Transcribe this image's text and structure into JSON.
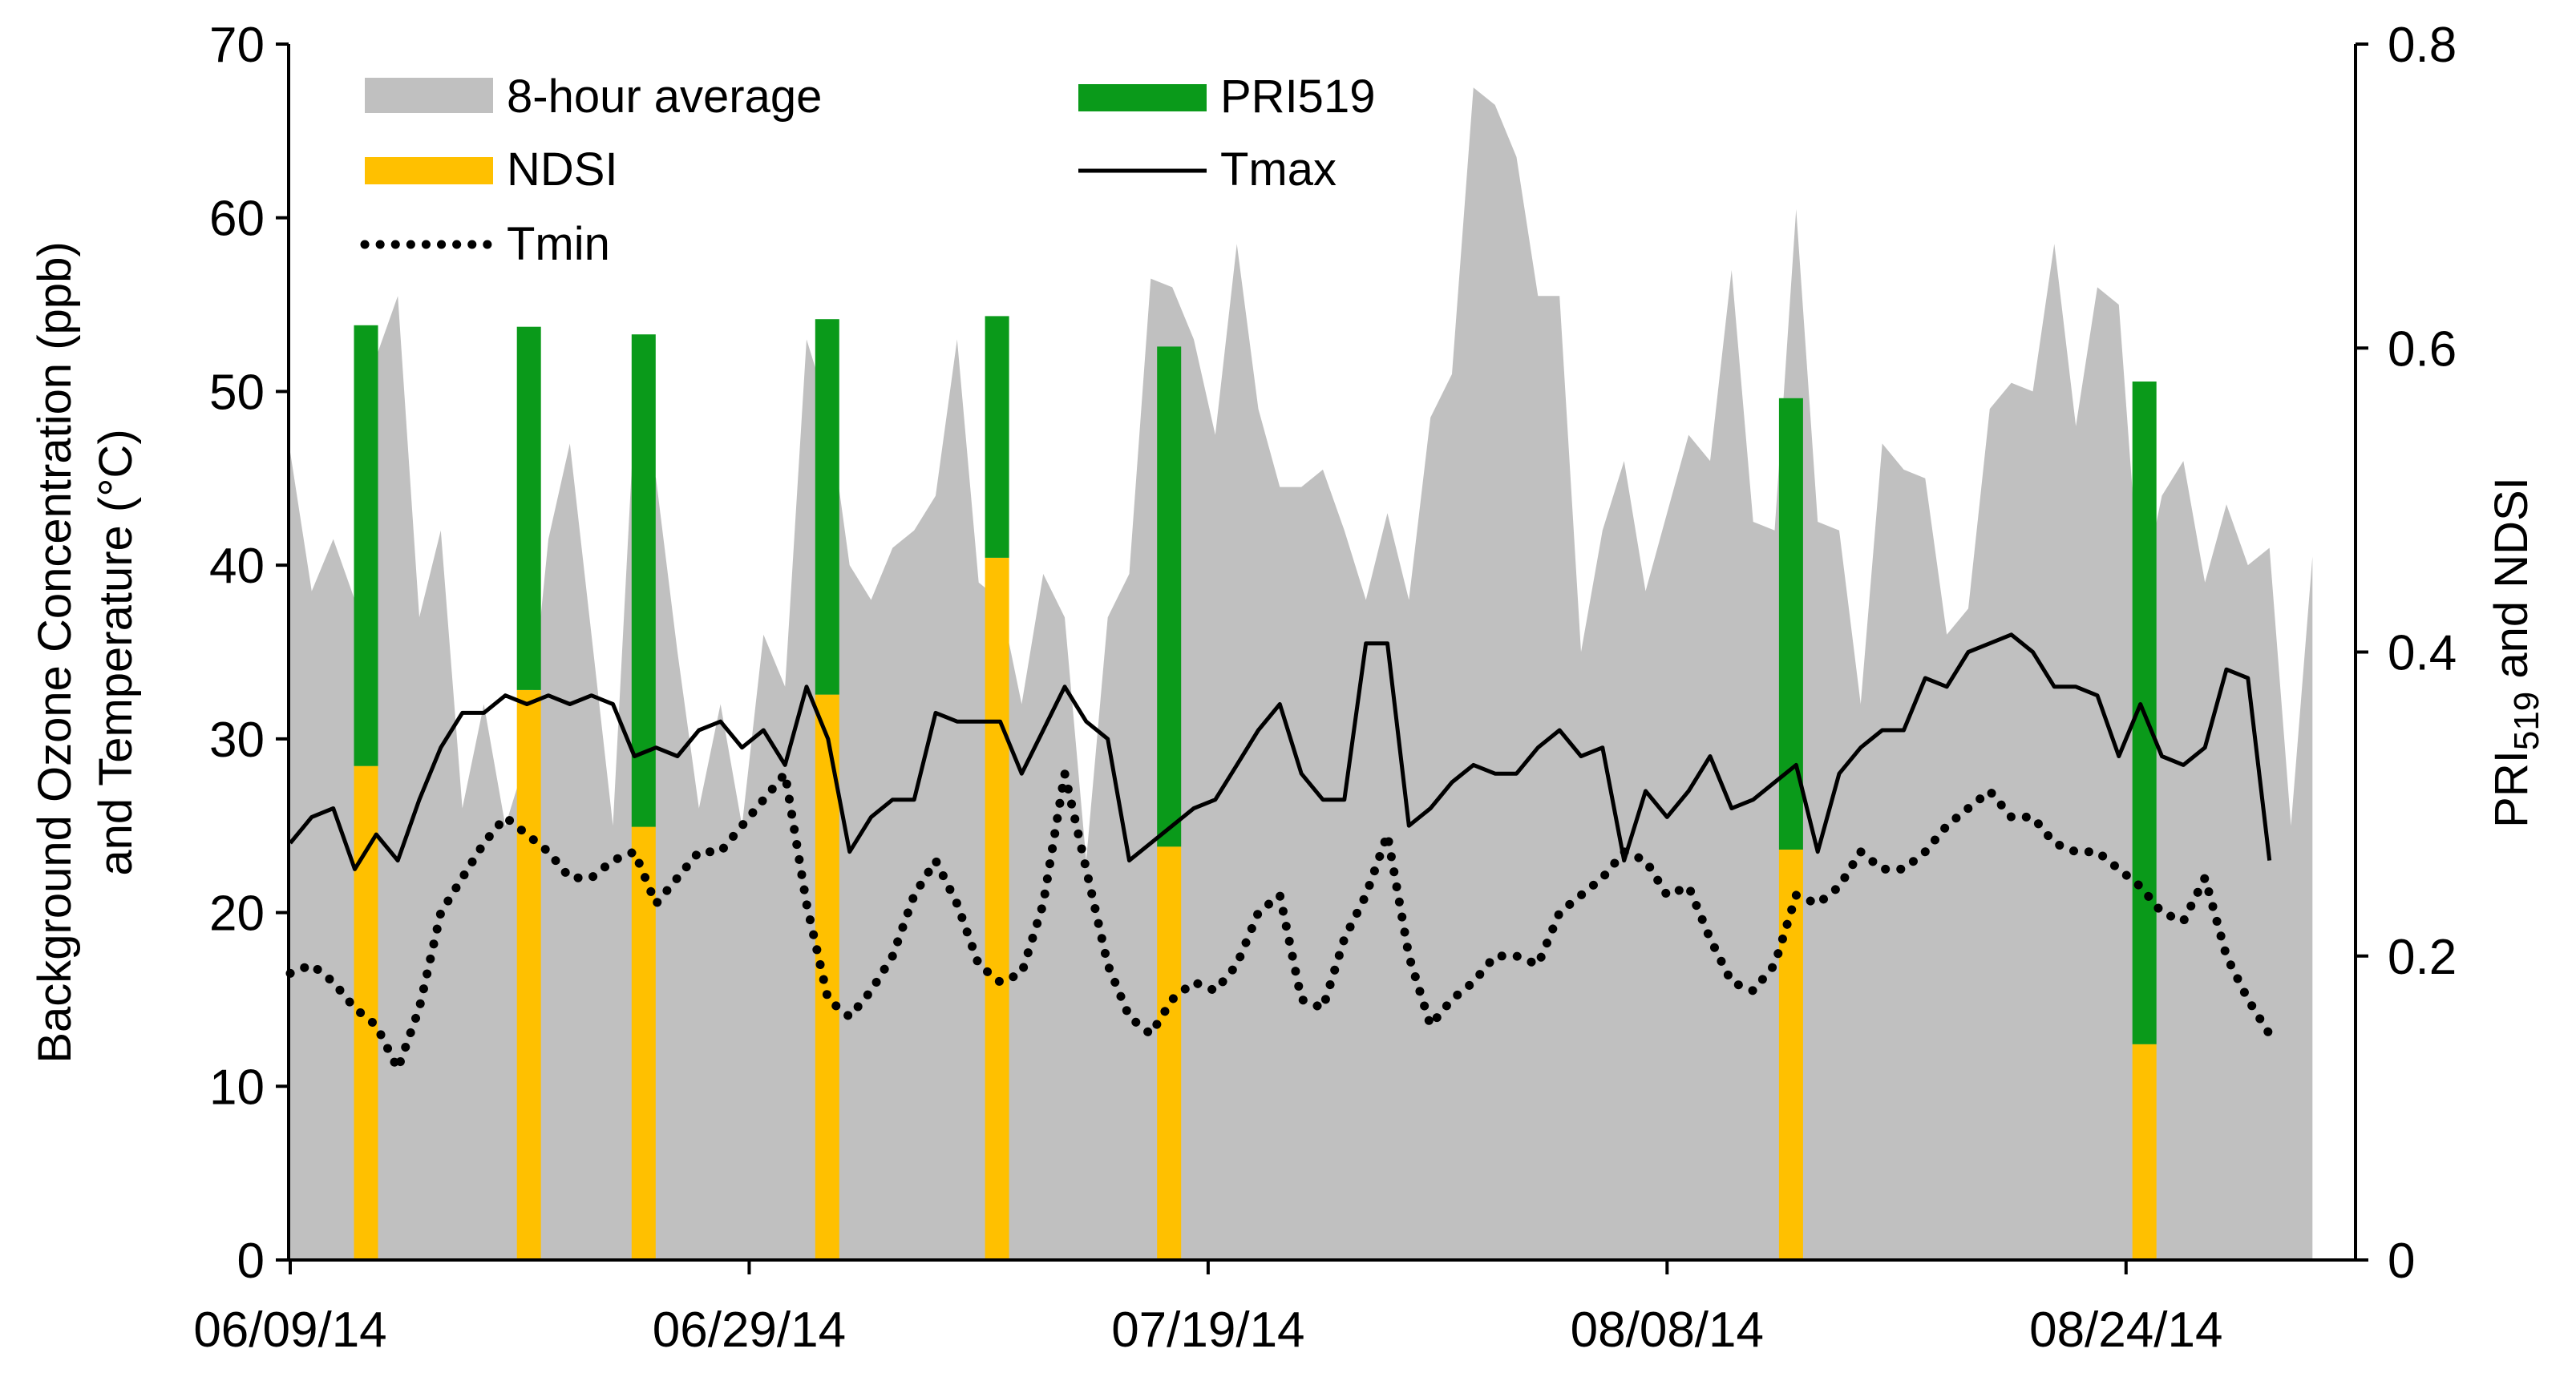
{
  "chart_data": {
    "type": "bar+area+line",
    "xlabel": "",
    "ylabel_left": "Background Ozone Concentration (ppb) and Temperature (°C)",
    "ylabel_left_line1": "Background Ozone Concentration (ppb)",
    "ylabel_left_line2": "and Temperature (°C)",
    "ylabel_right": "PRI519 and NDSI",
    "ylabel_right_base": "PRI",
    "ylabel_right_sub": "519",
    "ylabel_right_rest": " and NDSI",
    "ylim_left": [
      0,
      70
    ],
    "ylim_right": [
      0,
      0.8
    ],
    "xlim": [
      0,
      90
    ],
    "yticks_left": [
      "0",
      "10",
      "20",
      "30",
      "40",
      "50",
      "60",
      "70"
    ],
    "yticks_right": [
      "0",
      "0.2",
      "0.4",
      "0.6",
      "0.8"
    ],
    "xtick_labels": [
      "06/09/14",
      "06/29/14",
      "07/19/14",
      "08/08/14",
      "08/24/14"
    ],
    "xtick_positions": [
      0,
      20,
      40,
      60,
      80
    ],
    "legend": {
      "placement": "top-left",
      "entries": [
        "8-hour average",
        "PRI519",
        "NDSI",
        "Tmax",
        "Tmin"
      ]
    },
    "colors": {
      "area": "#c0c0c0",
      "pri": "#0a9a1a",
      "ndsi": "#ffc000",
      "line": "#000000"
    },
    "ozone_8h_avg": [
      46.5,
      38.5,
      41.5,
      38,
      52,
      55.5,
      37,
      42,
      26,
      32,
      25,
      29,
      41.5,
      47,
      36,
      25,
      48.5,
      45,
      35,
      26,
      32,
      25,
      36,
      33,
      53,
      49,
      40,
      38,
      41,
      42,
      44,
      53,
      39,
      38,
      32,
      39.5,
      37,
      23,
      37,
      39.5,
      56.5,
      56,
      53,
      47.5,
      58.5,
      49,
      44.5,
      44.5,
      45.5,
      42,
      38,
      43,
      38,
      48.5,
      51,
      67.5,
      66.5,
      63.5,
      55.5,
      55.5,
      35,
      42,
      46,
      38.5,
      43,
      47.5,
      46,
      57,
      42.5,
      42,
      60.5,
      42.5,
      42,
      32,
      47,
      45.5,
      45,
      36,
      37.5,
      49,
      50.5,
      50,
      58.5,
      48,
      56,
      55,
      38,
      44,
      46,
      39,
      43.5,
      40,
      41,
      25,
      40.5
    ],
    "ozone_x_step": 0.9375,
    "tmax": [
      [
        0,
        24
      ],
      [
        1,
        25.5
      ],
      [
        2,
        26
      ],
      [
        3,
        22.5
      ],
      [
        4,
        24.5
      ],
      [
        5,
        23
      ],
      [
        6,
        26.5
      ],
      [
        7,
        29.5
      ],
      [
        8,
        31.5
      ],
      [
        9,
        31.5
      ],
      [
        10,
        32.5
      ],
      [
        11,
        32
      ],
      [
        12,
        32.5
      ],
      [
        13,
        32
      ],
      [
        14,
        32.5
      ],
      [
        15,
        32
      ],
      [
        16,
        29
      ],
      [
        17,
        29.5
      ],
      [
        18,
        29
      ],
      [
        19,
        30.5
      ],
      [
        20,
        31
      ],
      [
        21,
        29.5
      ],
      [
        22,
        30.5
      ],
      [
        23,
        28.5
      ],
      [
        24,
        33
      ],
      [
        25,
        30
      ],
      [
        26,
        23.5
      ],
      [
        27,
        25.5
      ],
      [
        28,
        26.5
      ],
      [
        29,
        26.5
      ],
      [
        30,
        31.5
      ],
      [
        31,
        31
      ],
      [
        32,
        31
      ],
      [
        33,
        31
      ],
      [
        34,
        28
      ],
      [
        35,
        30.5
      ],
      [
        36,
        33
      ],
      [
        37,
        31
      ],
      [
        38,
        30
      ],
      [
        39,
        23
      ],
      [
        40,
        24
      ],
      [
        41,
        25
      ],
      [
        42,
        26
      ],
      [
        43,
        26.5
      ],
      [
        44,
        28.5
      ],
      [
        45,
        30.5
      ],
      [
        46,
        32
      ],
      [
        47,
        28
      ],
      [
        48,
        26.5
      ],
      [
        49,
        26.5
      ],
      [
        50,
        35.5
      ],
      [
        51,
        35.5
      ],
      [
        52,
        25
      ],
      [
        53,
        26
      ],
      [
        54,
        27.5
      ],
      [
        55,
        28.5
      ],
      [
        56,
        28
      ],
      [
        57,
        28
      ],
      [
        58,
        29.5
      ],
      [
        59,
        30.5
      ],
      [
        60,
        29
      ],
      [
        61,
        29.5
      ],
      [
        62,
        23
      ],
      [
        63,
        27
      ],
      [
        64,
        25.5
      ],
      [
        65,
        27
      ],
      [
        66,
        29
      ],
      [
        67,
        26
      ],
      [
        68,
        26.5
      ],
      [
        69,
        27.5
      ],
      [
        70,
        28.5
      ],
      [
        71,
        23.5
      ],
      [
        72,
        28
      ],
      [
        73,
        29.5
      ],
      [
        74,
        30.5
      ],
      [
        75,
        30.5
      ],
      [
        76,
        33.5
      ],
      [
        77,
        33
      ],
      [
        78,
        35
      ],
      [
        79,
        35.5
      ],
      [
        80,
        36
      ],
      [
        81,
        35
      ],
      [
        82,
        33
      ],
      [
        83,
        33
      ],
      [
        84,
        32.5
      ],
      [
        85,
        29
      ],
      [
        86,
        32
      ],
      [
        87,
        29
      ],
      [
        88,
        28.5
      ],
      [
        89,
        29.5
      ],
      [
        90,
        34
      ],
      [
        91,
        33.5
      ],
      [
        92,
        23
      ]
    ],
    "tmin": [
      [
        0,
        16.5
      ],
      [
        1,
        17
      ],
      [
        2,
        16
      ],
      [
        3,
        14.5
      ],
      [
        4,
        13.5
      ],
      [
        5,
        11
      ],
      [
        6,
        14.5
      ],
      [
        7,
        20
      ],
      [
        8,
        22
      ],
      [
        9,
        24
      ],
      [
        10,
        25.5
      ],
      [
        11,
        24.5
      ],
      [
        12,
        23.5
      ],
      [
        13,
        22
      ],
      [
        14,
        22
      ],
      [
        15,
        23
      ],
      [
        16,
        23.5
      ],
      [
        17,
        20.5
      ],
      [
        18,
        22
      ],
      [
        19,
        23.5
      ],
      [
        20,
        23.5
      ],
      [
        21,
        25
      ],
      [
        22,
        26.5
      ],
      [
        23,
        28
      ],
      [
        24,
        20.5
      ],
      [
        25,
        15
      ],
      [
        26,
        14
      ],
      [
        27,
        15.5
      ],
      [
        28,
        17.5
      ],
      [
        29,
        21
      ],
      [
        30,
        23
      ],
      [
        31,
        20.5
      ],
      [
        32,
        17
      ],
      [
        33,
        16
      ],
      [
        34,
        16.5
      ],
      [
        35,
        20.5
      ],
      [
        36,
        28
      ],
      [
        37,
        22.5
      ],
      [
        38,
        17
      ],
      [
        39,
        14
      ],
      [
        40,
        13
      ],
      [
        41,
        15
      ],
      [
        42,
        16
      ],
      [
        43,
        15.5
      ],
      [
        44,
        17
      ],
      [
        45,
        20
      ],
      [
        46,
        21
      ],
      [
        47,
        15
      ],
      [
        48,
        14.5
      ],
      [
        49,
        18.5
      ],
      [
        50,
        21
      ],
      [
        51,
        24.5
      ],
      [
        52,
        17.5
      ],
      [
        53,
        13.5
      ],
      [
        54,
        15
      ],
      [
        55,
        16
      ],
      [
        56,
        17.5
      ],
      [
        57,
        17.5
      ],
      [
        58,
        17
      ],
      [
        59,
        20
      ],
      [
        60,
        21
      ],
      [
        61,
        22
      ],
      [
        62,
        23.5
      ],
      [
        63,
        23
      ],
      [
        64,
        21
      ],
      [
        65,
        21.5
      ],
      [
        66,
        18.5
      ],
      [
        67,
        16
      ],
      [
        68,
        15.5
      ],
      [
        69,
        17
      ],
      [
        70,
        21
      ],
      [
        71,
        20.5
      ],
      [
        72,
        21.5
      ],
      [
        73,
        23.5
      ],
      [
        74,
        22.5
      ],
      [
        75,
        22.5
      ],
      [
        76,
        23.5
      ],
      [
        77,
        25
      ],
      [
        78,
        26
      ],
      [
        79,
        27
      ],
      [
        80,
        25.5
      ],
      [
        81,
        25.5
      ],
      [
        82,
        24
      ],
      [
        83,
        23.5
      ],
      [
        84,
        23.5
      ],
      [
        85,
        22.5
      ],
      [
        86,
        21.5
      ],
      [
        87,
        20
      ],
      [
        88,
        19.5
      ],
      [
        89,
        22
      ],
      [
        90,
        17.5
      ],
      [
        91,
        15
      ],
      [
        92,
        13
      ]
    ],
    "x_scale": 0.9375,
    "bars": [
      {
        "x": 3.3,
        "ndsi": 0.325,
        "pri": 0.615
      },
      {
        "x": 10.4,
        "ndsi": 0.375,
        "pri": 0.614
      },
      {
        "x": 15.4,
        "ndsi": 0.285,
        "pri": 0.609
      },
      {
        "x": 23.4,
        "ndsi": 0.372,
        "pri": 0.619
      },
      {
        "x": 30.8,
        "ndsi": 0.462,
        "pri": 0.621
      },
      {
        "x": 38.3,
        "ndsi": 0.272,
        "pri": 0.601
      },
      {
        "x": 65.4,
        "ndsi": 0.27,
        "pri": 0.567
      },
      {
        "x": 80.8,
        "ndsi": 0.142,
        "pri": 0.578
      }
    ]
  }
}
